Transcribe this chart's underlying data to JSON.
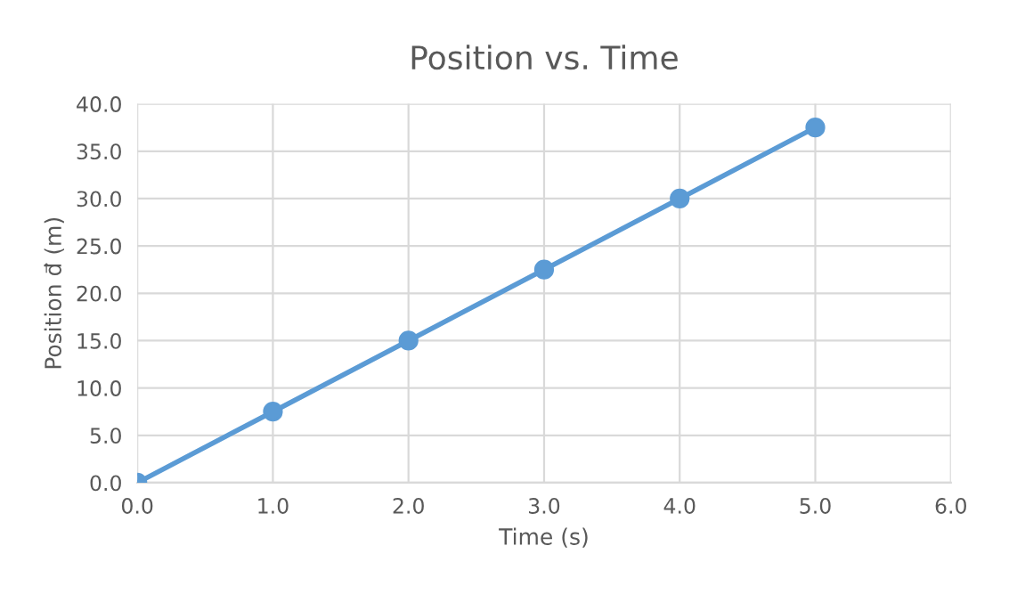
{
  "chart_data": {
    "type": "line",
    "title": "Position vs. Time",
    "xlabel": "Time (s)",
    "ylabel": "Position d⃗ (m)",
    "x": [
      0,
      1,
      2,
      3,
      4,
      5
    ],
    "series": [
      {
        "color": "#5b9bd5",
        "values": [
          0,
          7.5,
          15,
          22.5,
          30,
          37.5
        ]
      }
    ],
    "marker": "circle",
    "line_style": "solid",
    "grid": true,
    "legend": false,
    "xlim": [
      0,
      6
    ],
    "xticks": [
      {
        "value": 0,
        "label": "0.0"
      },
      {
        "value": 1,
        "label": "1.0"
      },
      {
        "value": 2,
        "label": "2.0"
      },
      {
        "value": 3,
        "label": "3.0"
      },
      {
        "value": 4,
        "label": "4.0"
      },
      {
        "value": 5,
        "label": "5.0"
      },
      {
        "value": 6,
        "label": "6.0"
      }
    ],
    "ylim": [
      0,
      40
    ],
    "yticks": [
      {
        "value": 0,
        "label": "0.0"
      },
      {
        "value": 5,
        "label": "5.0"
      },
      {
        "value": 10,
        "label": "10.0"
      },
      {
        "value": 15,
        "label": "15.0"
      },
      {
        "value": 20,
        "label": "20.0"
      },
      {
        "value": 25,
        "label": "25.0"
      },
      {
        "value": 30,
        "label": "30.0"
      },
      {
        "value": 35,
        "label": "35.0"
      },
      {
        "value": 40,
        "label": "40.0"
      }
    ]
  }
}
